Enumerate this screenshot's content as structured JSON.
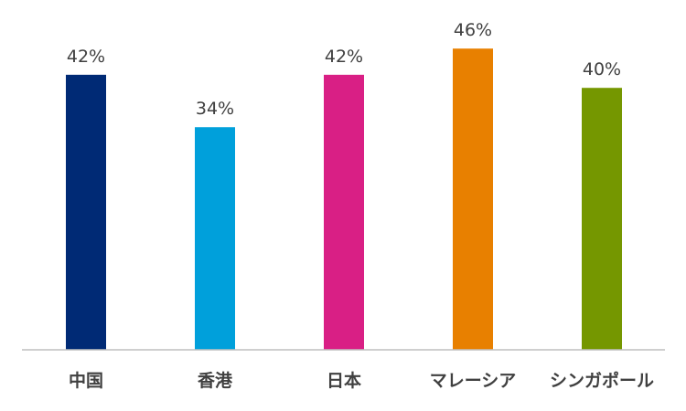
{
  "chart_data": {
    "type": "bar",
    "categories": [
      "中国",
      "香港",
      "日本",
      "マレーシア",
      "シンガポール"
    ],
    "values": [
      42,
      34,
      42,
      46,
      40
    ],
    "value_labels": [
      "42%",
      "34%",
      "42%",
      "46%",
      "40%"
    ],
    "colors": [
      "#002a75",
      "#00a0db",
      "#d91f85",
      "#e88000",
      "#759700"
    ],
    "unit": "%",
    "ylim": [
      0,
      53
    ],
    "grid": false,
    "legend": "none",
    "title": "",
    "xlabel": "",
    "ylabel": ""
  }
}
